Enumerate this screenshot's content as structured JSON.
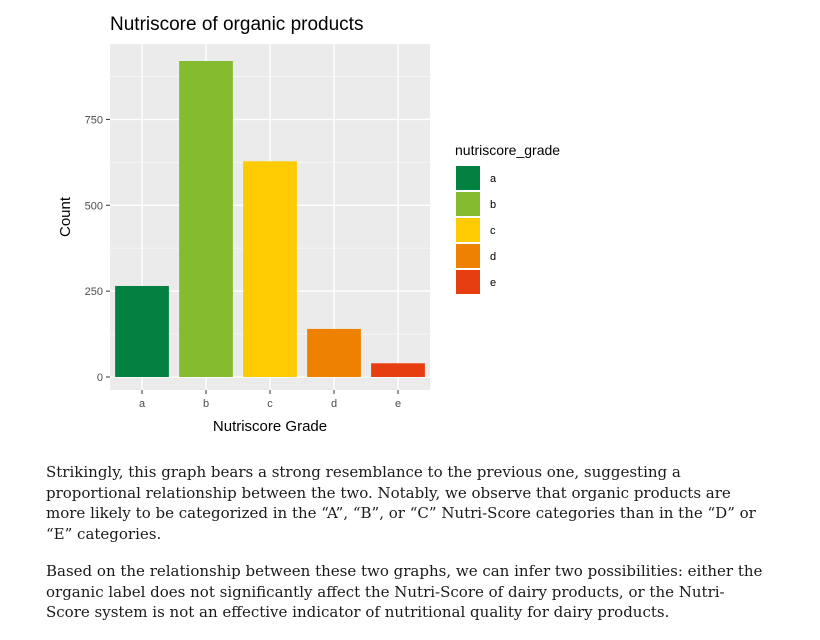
{
  "chart_data": {
    "type": "bar",
    "title": "Nutriscore of organic products",
    "xlabel": "Nutriscore Grade",
    "ylabel": "Count",
    "categories": [
      "a",
      "b",
      "c",
      "d",
      "e"
    ],
    "values": [
      265,
      920,
      628,
      140,
      40
    ],
    "colors": [
      "#038141",
      "#85BB2F",
      "#FECB02",
      "#EE8100",
      "#E63E11"
    ],
    "yticks": [
      0,
      250,
      500,
      750
    ],
    "ylim": [
      0,
      966
    ],
    "grid": true,
    "legend": {
      "title": "nutriscore_grade",
      "placement": "right",
      "entries": [
        "a",
        "b",
        "c",
        "d",
        "e"
      ]
    }
  },
  "text": {
    "paragraph1": "Strikingly, this graph bears a strong resemblance to the previous one, suggesting a proportional relationship between the two. Notably, we observe that organic products are more likely to be categorized in the “A”, “B”, or “C” Nutri-Score categories than in the “D” or “E” categories.",
    "paragraph2": "Based on the relationship between these two graphs, we can infer two possibilities: either the organic label does not significantly affect the Nutri-Score of dairy products, or the Nutri-Score system is not an effective indicator of nutritional quality for dairy products."
  }
}
